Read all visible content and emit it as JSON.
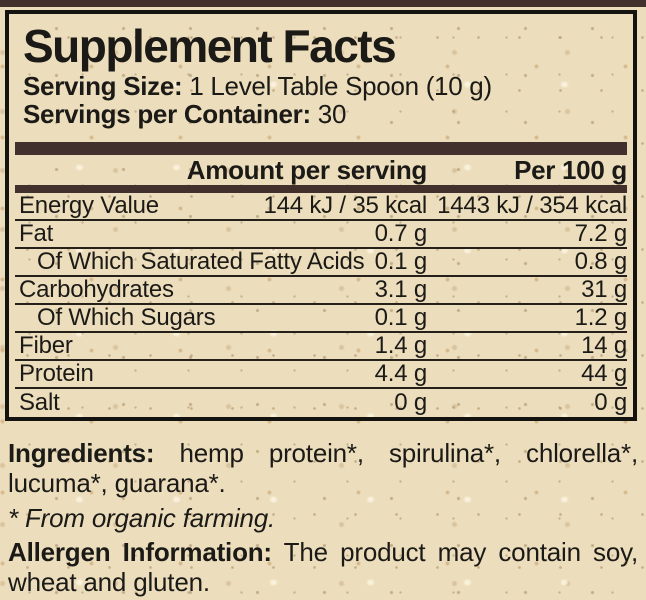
{
  "panel": {
    "title": "Supplement Facts",
    "serving_size_label": "Serving Size:",
    "serving_size_value": "1 Level Table Spoon (10 g)",
    "servings_label": "Servings per Container:",
    "servings_value": "30",
    "table": {
      "col_amount": "Amount per serving",
      "col_per100": "Per 100 g",
      "rows": [
        {
          "name": "Energy Value",
          "amount": "144 kJ / 35 kcal",
          "per100": "1443 kJ / 354 kcal"
        },
        {
          "name": "Fat",
          "amount": "0.7 g",
          "per100": "7.2 g"
        },
        {
          "name": "Of Which Saturated Fatty Acids",
          "amount": "0.1 g",
          "per100": "0.8 g"
        },
        {
          "name": "Carbohydrates",
          "amount": "3.1 g",
          "per100": "31 g"
        },
        {
          "name": "Of Which Sugars",
          "amount": "0.1 g",
          "per100": "1.2 g"
        },
        {
          "name": "Fiber",
          "amount": "1.4 g",
          "per100": "14 g"
        },
        {
          "name": "Protein",
          "amount": "4.4 g",
          "per100": "44 g"
        },
        {
          "name": "Salt",
          "amount": "0 g",
          "per100": "0 g"
        }
      ]
    }
  },
  "footer": {
    "ingredients_label": "Ingredients:",
    "ingredients_value": "hemp protein*, spirulina*, chlorella*, lucuma*, guarana*.",
    "organic_note": "* From organic farming.",
    "allergen_label": "Allergen Information:",
    "allergen_value": "The product may contain soy, wheat and gluten."
  },
  "colors": {
    "background": "#ecdebd",
    "bar": "#42302d",
    "text": "#1c1a16",
    "border": "#15130f"
  }
}
